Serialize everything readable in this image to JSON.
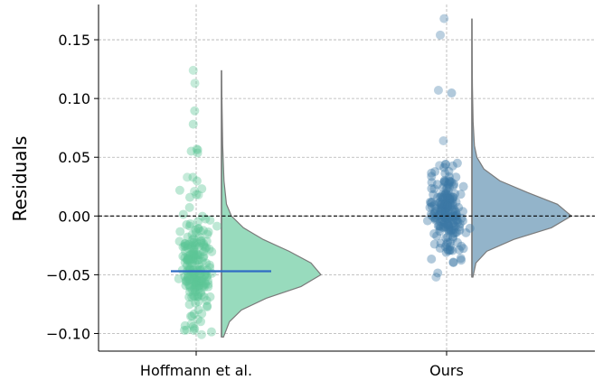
{
  "chart_data": {
    "type": "raincloud",
    "title": "",
    "xlabel": "",
    "ylabel": "Residuals",
    "ylim": [
      -0.115,
      0.18
    ],
    "yticks": [
      -0.1,
      -0.05,
      0.0,
      0.05,
      0.1,
      0.15
    ],
    "ytick_labels": [
      "−0.10",
      "−0.05",
      "0.00",
      "0.05",
      "0.10",
      "0.15"
    ],
    "categories": [
      "Hoffmann et al.",
      "Ours"
    ],
    "reference_line": 0.0,
    "grid": true,
    "groups": [
      {
        "label": "Hoffmann et al.",
        "color": "#5cc595",
        "violin_color": "#98dbbd",
        "median_line_color": "#2f6cc4",
        "median": -0.047,
        "range": [
          -0.103,
          0.124
        ],
        "density": {
          "y": [
            -0.103,
            -0.09,
            -0.08,
            -0.07,
            -0.06,
            -0.05,
            -0.04,
            -0.03,
            -0.02,
            -0.01,
            0.0,
            0.01,
            0.03,
            0.06,
            0.09,
            0.124
          ],
          "d": [
            0.02,
            0.08,
            0.2,
            0.45,
            0.8,
            1.0,
            0.9,
            0.68,
            0.42,
            0.22,
            0.1,
            0.05,
            0.025,
            0.012,
            0.006,
            0.0
          ]
        },
        "outliers": [
          -0.101,
          -0.097,
          -0.092,
          -0.088,
          0.018,
          0.021,
          0.033,
          0.057,
          0.113,
          0.124
        ]
      },
      {
        "label": "Ours",
        "color": "#3c78a6",
        "violin_color": "#93b4ca",
        "range": [
          -0.052,
          0.168
        ],
        "density": {
          "y": [
            -0.052,
            -0.04,
            -0.03,
            -0.02,
            -0.01,
            0.0,
            0.01,
            0.02,
            0.03,
            0.04,
            0.05,
            0.06,
            0.08,
            0.11,
            0.14,
            0.168
          ],
          "d": [
            0.01,
            0.04,
            0.15,
            0.42,
            0.8,
            1.0,
            0.86,
            0.56,
            0.28,
            0.12,
            0.05,
            0.025,
            0.012,
            0.005,
            0.002,
            0.0
          ]
        },
        "outliers": [
          -0.052,
          0.043,
          0.044,
          0.064,
          0.107,
          0.154,
          0.168
        ]
      }
    ]
  }
}
